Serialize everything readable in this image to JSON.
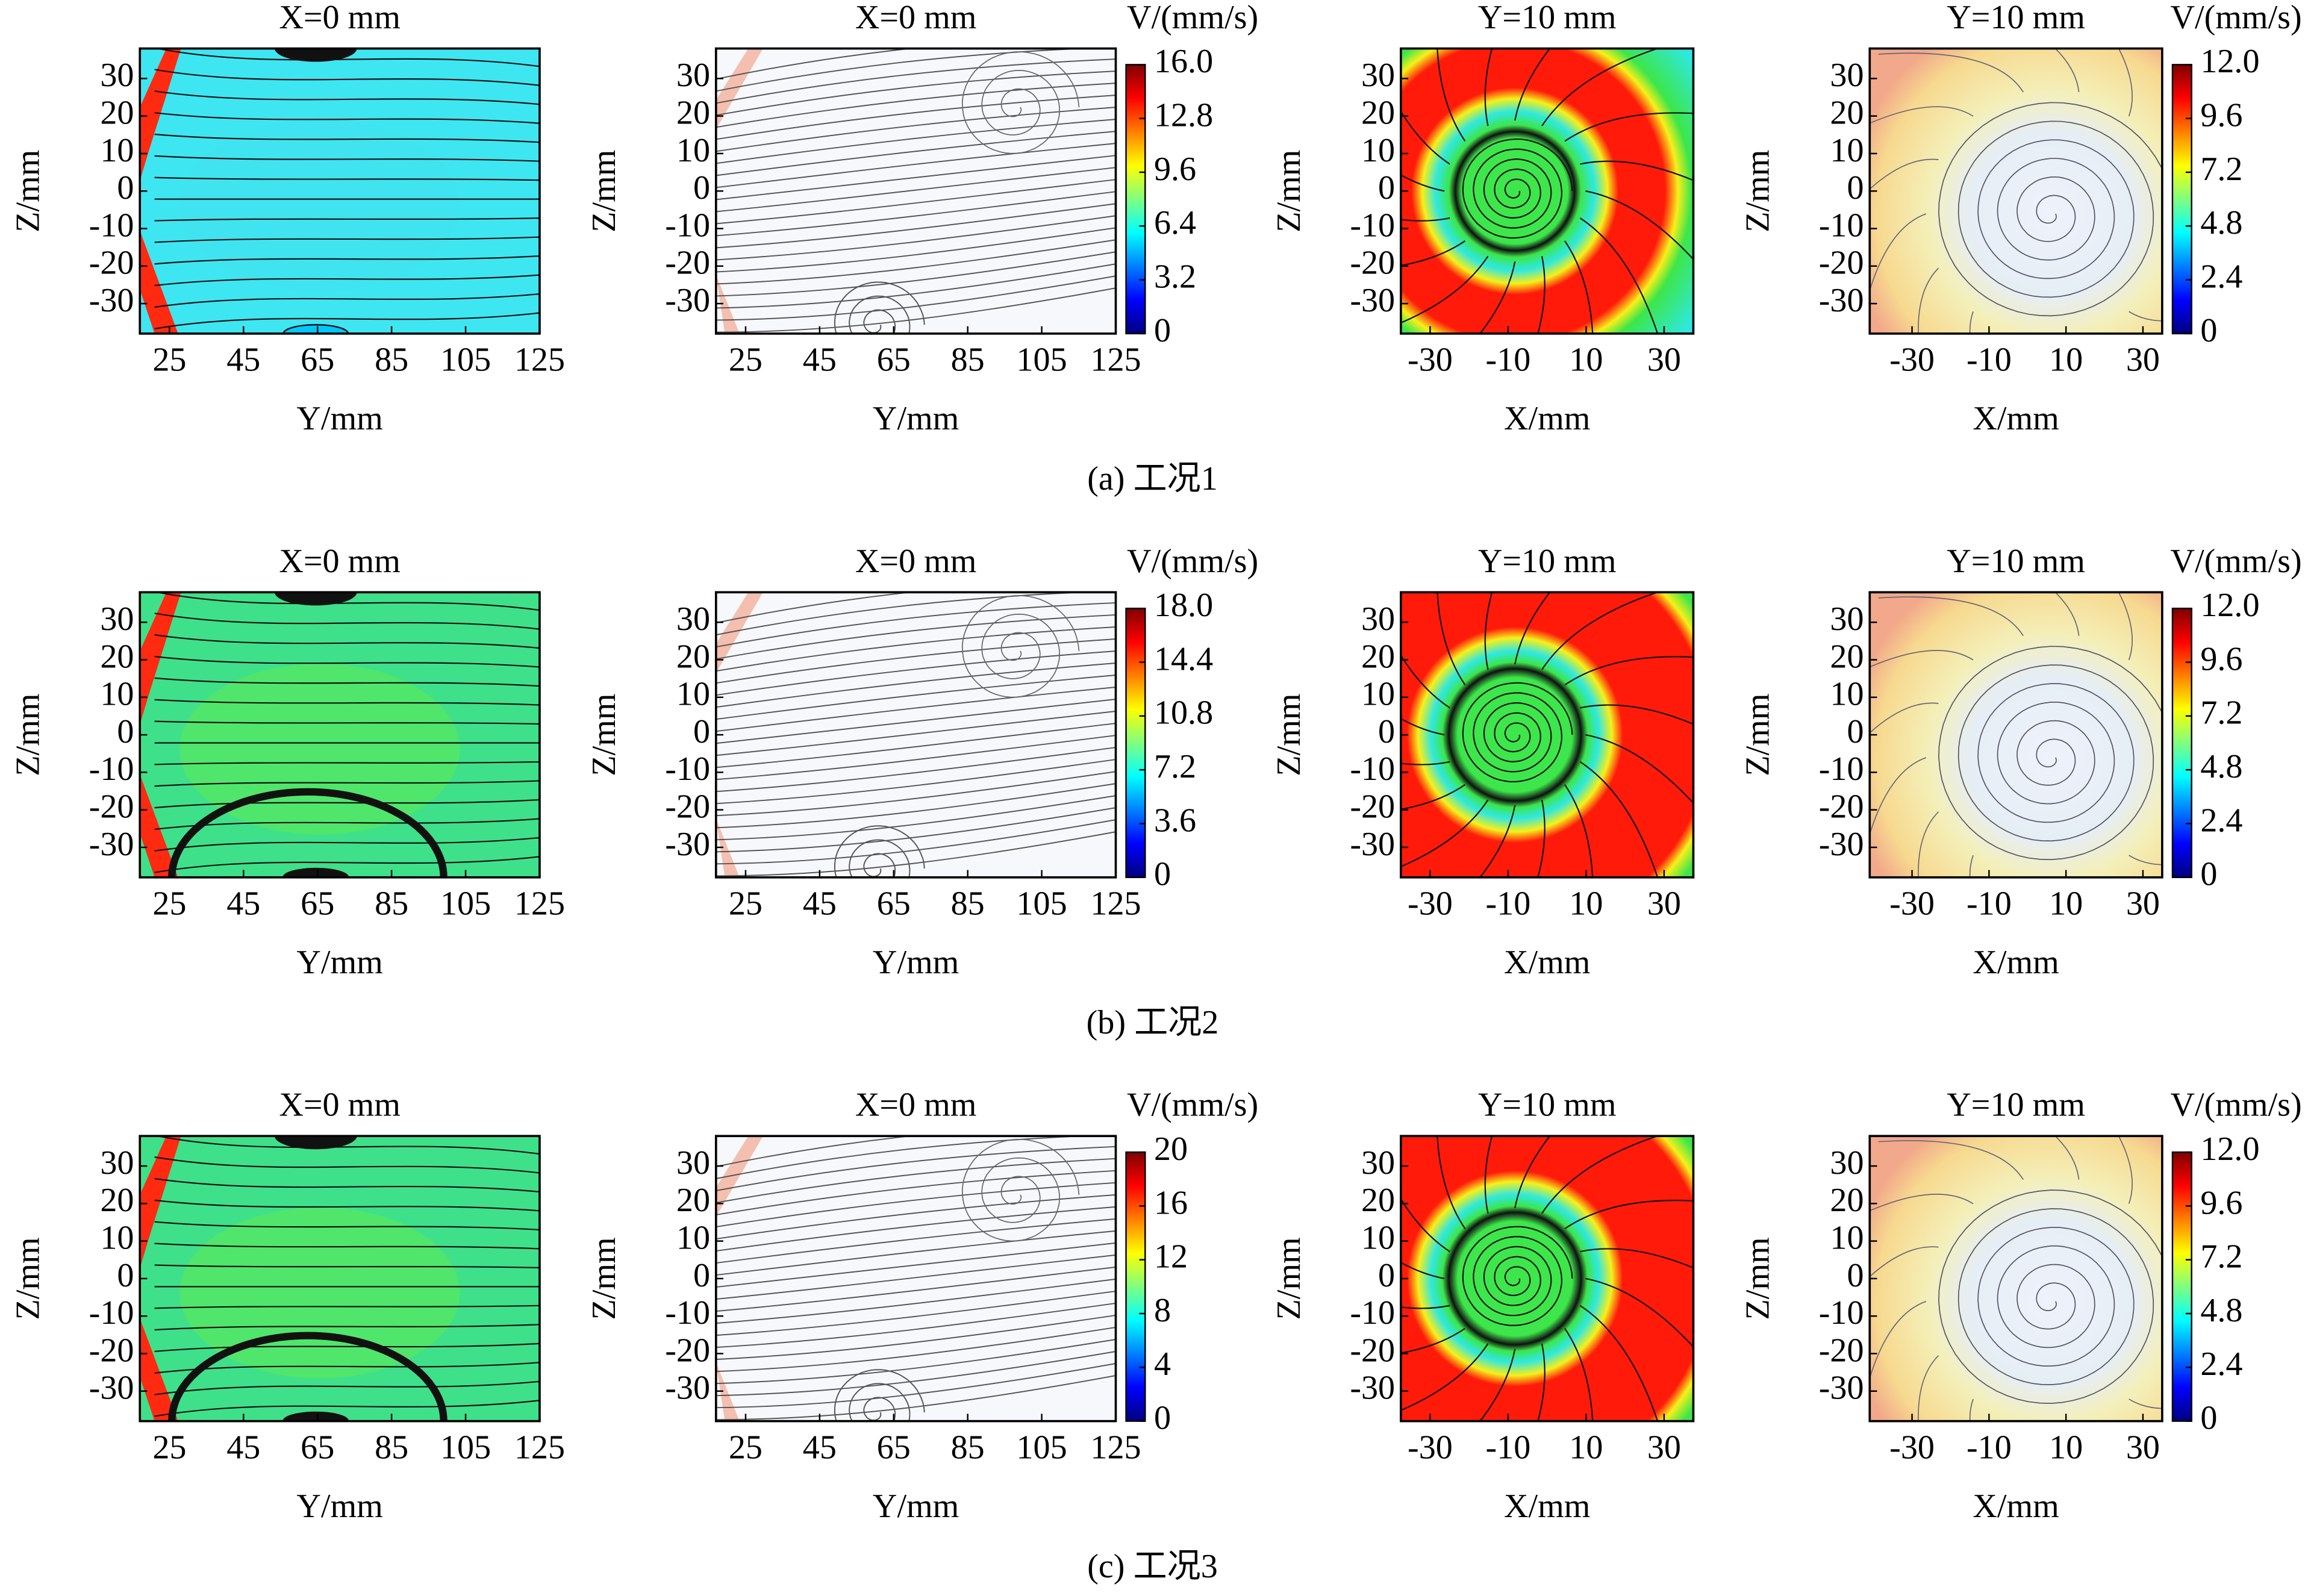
{
  "chart_data": [
    {
      "type": "streamline",
      "title": "X=0 mm",
      "xlabel": "Y/mm",
      "ylabel": "Z/mm",
      "xlim": [
        17,
        125
      ],
      "ylim": [
        -38,
        38
      ],
      "xticks": [
        25,
        45,
        65,
        85,
        105,
        125
      ],
      "yticks": [
        30,
        20,
        10,
        0,
        -10,
        -20,
        -30
      ]
    },
    {
      "type": "streamline",
      "title": "X=0 mm",
      "xlabel": "Y/mm",
      "ylabel": "Z/mm",
      "xlim": [
        17,
        125
      ],
      "ylim": [
        -38,
        38
      ],
      "xticks": [
        25,
        45,
        65,
        85,
        105,
        125
      ],
      "yticks": [
        30,
        20,
        10,
        0,
        -10,
        -20,
        -30
      ],
      "colorbar": {
        "label": "V/(mm/s)",
        "lim": [
          0,
          16
        ],
        "ticks": [
          0,
          3.2,
          6.4,
          9.6,
          12.8,
          {
            "value": 16,
            "label": "16.0"
          }
        ]
      }
    },
    {
      "type": "streamline",
      "title": "Y=10 mm",
      "xlabel": "X/mm",
      "ylabel": "Z/mm",
      "xlim": [
        -37.5,
        37.5
      ],
      "ylim": [
        -38,
        38
      ],
      "xticks": [
        -30,
        -10,
        10,
        30
      ],
      "yticks": [
        30,
        20,
        10,
        0,
        -10,
        -20,
        -30
      ]
    },
    {
      "type": "streamline",
      "title": "Y=10 mm",
      "xlabel": "X/mm",
      "ylabel": "Z/mm",
      "xlim": [
        -41,
        35
      ],
      "ylim": [
        -38,
        38
      ],
      "xticks": [
        -30,
        -10,
        10,
        30
      ],
      "yticks": [
        30,
        20,
        10,
        0,
        -10,
        -20,
        -30
      ],
      "colorbar": {
        "label": "V/(mm/s)",
        "lim": [
          0,
          12
        ],
        "ticks": [
          0,
          2.4,
          4.8,
          7.2,
          9.6,
          {
            "value": 12,
            "label": "12.0"
          }
        ]
      }
    },
    {
      "type": "streamline",
      "title": "X=0 mm",
      "xlabel": "Y/mm",
      "ylabel": "Z/mm",
      "xlim": [
        17,
        125
      ],
      "ylim": [
        -38,
        38
      ],
      "xticks": [
        25,
        45,
        65,
        85,
        105,
        125
      ],
      "yticks": [
        30,
        20,
        10,
        0,
        -10,
        -20,
        -30
      ]
    },
    {
      "type": "streamline",
      "title": "X=0 mm",
      "xlabel": "Y/mm",
      "ylabel": "Z/mm",
      "xlim": [
        17,
        125
      ],
      "ylim": [
        -38,
        38
      ],
      "xticks": [
        25,
        45,
        65,
        85,
        105,
        125
      ],
      "yticks": [
        30,
        20,
        10,
        0,
        -10,
        -20,
        -30
      ],
      "colorbar": {
        "label": "V/(mm/s)",
        "lim": [
          0,
          18
        ],
        "ticks": [
          0,
          3.6,
          7.2,
          10.8,
          14.4,
          {
            "value": 18,
            "label": "18.0"
          }
        ]
      }
    },
    {
      "type": "streamline",
      "title": "Y=10 mm",
      "xlabel": "X/mm",
      "ylabel": "Z/mm",
      "xlim": [
        -37.5,
        37.5
      ],
      "ylim": [
        -38,
        38
      ],
      "xticks": [
        -30,
        -10,
        10,
        30
      ],
      "yticks": [
        30,
        20,
        10,
        0,
        -10,
        -20,
        -30
      ]
    },
    {
      "type": "streamline",
      "title": "Y=10 mm",
      "xlabel": "X/mm",
      "ylabel": "Z/mm",
      "xlim": [
        -41,
        35
      ],
      "ylim": [
        -38,
        38
      ],
      "xticks": [
        -30,
        -10,
        10,
        30
      ],
      "yticks": [
        30,
        20,
        10,
        0,
        -10,
        -20,
        -30
      ],
      "colorbar": {
        "label": "V/(mm/s)",
        "lim": [
          0,
          12
        ],
        "ticks": [
          0,
          2.4,
          4.8,
          7.2,
          9.6,
          {
            "value": 12,
            "label": "12.0"
          }
        ]
      }
    },
    {
      "type": "streamline",
      "title": "X=0 mm",
      "xlabel": "Y/mm",
      "ylabel": "Z/mm",
      "xlim": [
        17,
        125
      ],
      "ylim": [
        -38,
        38
      ],
      "xticks": [
        25,
        45,
        65,
        85,
        105,
        125
      ],
      "yticks": [
        30,
        20,
        10,
        0,
        -10,
        -20,
        -30
      ]
    },
    {
      "type": "streamline",
      "title": "X=0 mm",
      "xlabel": "Y/mm",
      "ylabel": "Z/mm",
      "xlim": [
        17,
        125
      ],
      "ylim": [
        -38,
        38
      ],
      "xticks": [
        25,
        45,
        65,
        85,
        105,
        125
      ],
      "yticks": [
        30,
        20,
        10,
        0,
        -10,
        -20,
        -30
      ],
      "colorbar": {
        "label": "V/(mm/s)",
        "lim": [
          0,
          20
        ],
        "ticks": [
          0,
          4,
          8,
          12,
          16,
          20
        ]
      }
    },
    {
      "type": "streamline",
      "title": "Y=10 mm",
      "xlabel": "X/mm",
      "ylabel": "Z/mm",
      "xlim": [
        -37.5,
        37.5
      ],
      "ylim": [
        -38,
        38
      ],
      "xticks": [
        -30,
        -10,
        10,
        30
      ],
      "yticks": [
        30,
        20,
        10,
        0,
        -10,
        -20,
        -30
      ]
    },
    {
      "type": "streamline",
      "title": "Y=10 mm",
      "xlabel": "X/mm",
      "ylabel": "Z/mm",
      "xlim": [
        -41,
        35
      ],
      "ylim": [
        -38,
        38
      ],
      "xticks": [
        -30,
        -10,
        10,
        30
      ],
      "yticks": [
        30,
        20,
        10,
        0,
        -10,
        -20,
        -30
      ],
      "colorbar": {
        "label": "V/(mm/s)",
        "lim": [
          0,
          12
        ],
        "ticks": [
          0,
          2.4,
          4.8,
          7.2,
          9.6,
          {
            "value": 12,
            "label": "12.0"
          }
        ]
      }
    }
  ],
  "captions": [
    "(a) 工况1",
    "(b) 工况2",
    "(c) 工况3"
  ]
}
